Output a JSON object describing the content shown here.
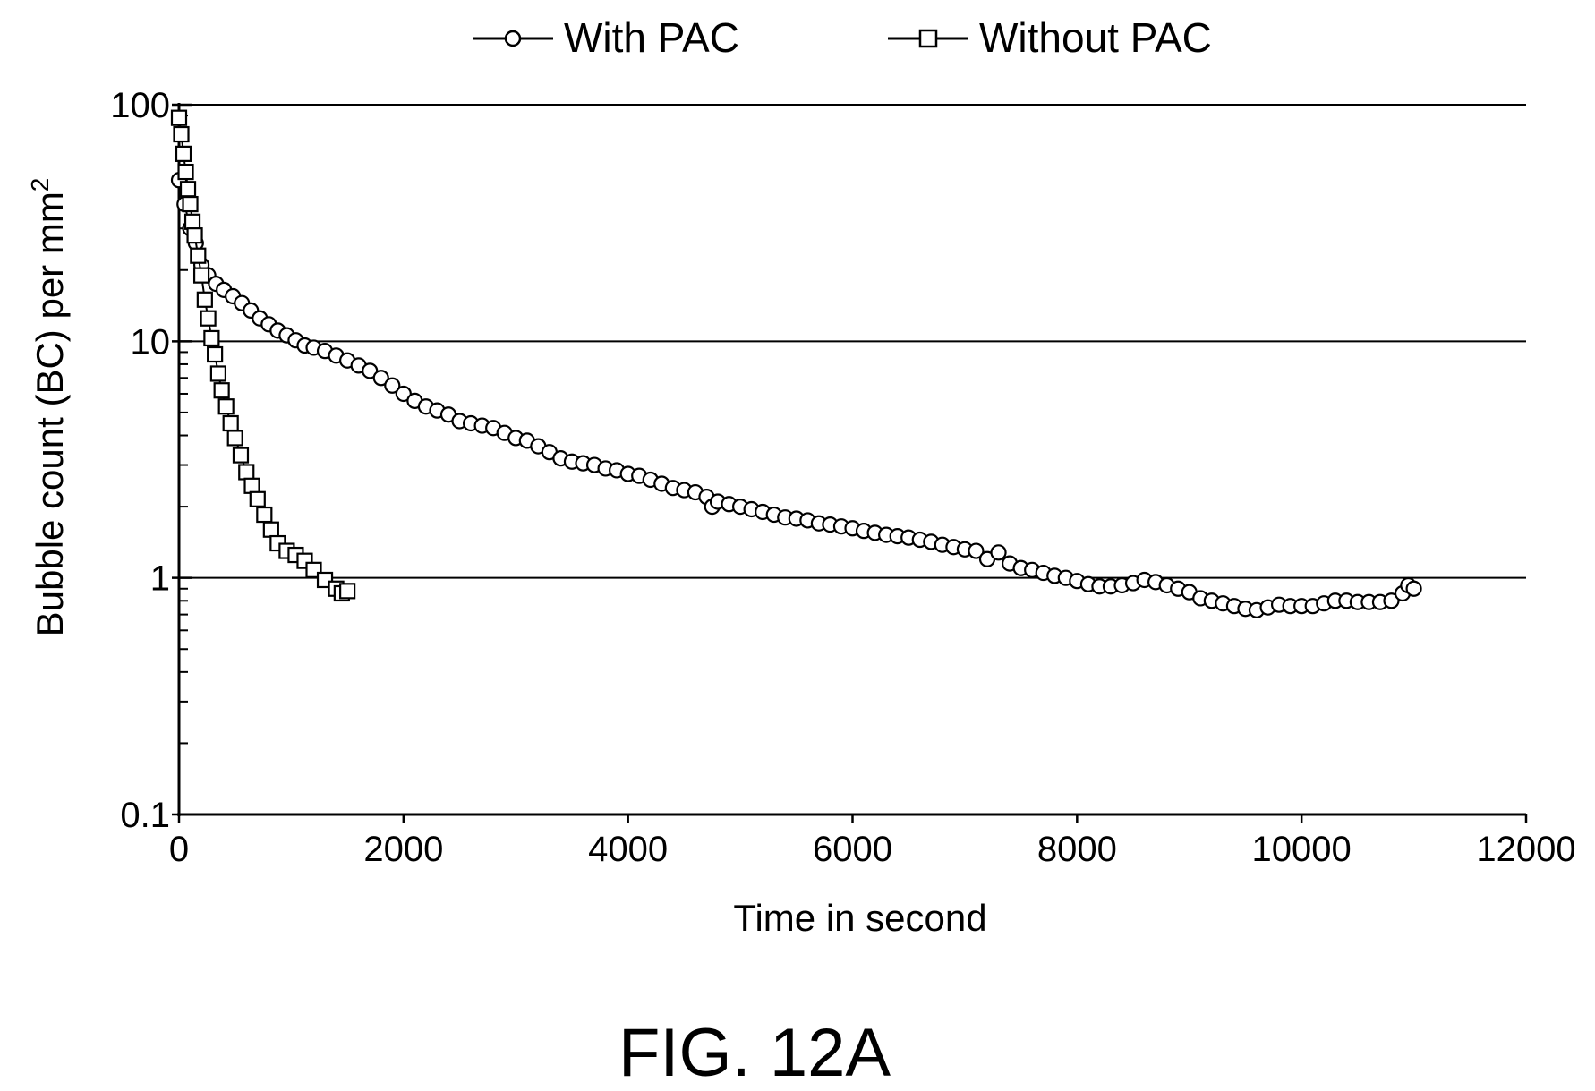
{
  "figure": {
    "caption": "FIG. 12A"
  },
  "chart_data": {
    "type": "scatter",
    "xlabel": "Time in second",
    "ylabel": "Bubble count (BC) per mm",
    "ylabel_superscript": "2",
    "xlim": [
      0,
      12000
    ],
    "ylim": [
      0.1,
      100
    ],
    "y_scale": "log",
    "x_ticks": [
      "0",
      "2000",
      "4000",
      "6000",
      "8000",
      "10000",
      "12000"
    ],
    "y_ticks": [
      "0.1",
      "1",
      "10",
      "100"
    ],
    "y_tick_values": [
      0.1,
      1,
      10,
      100
    ],
    "x_tick_values": [
      0,
      2000,
      4000,
      6000,
      8000,
      10000,
      12000
    ],
    "grid": "horizontal at 1, 10, 100",
    "legend_position": "top",
    "series": [
      {
        "name": "With PAC",
        "marker": "circle",
        "points": [
          [
            0,
            48
          ],
          [
            50,
            38
          ],
          [
            100,
            30
          ],
          [
            150,
            26
          ],
          [
            200,
            21
          ],
          [
            260,
            19
          ],
          [
            330,
            17.5
          ],
          [
            400,
            16.5
          ],
          [
            480,
            15.5
          ],
          [
            560,
            14.5
          ],
          [
            640,
            13.5
          ],
          [
            720,
            12.5
          ],
          [
            800,
            11.8
          ],
          [
            880,
            11.1
          ],
          [
            960,
            10.6
          ],
          [
            1040,
            10.1
          ],
          [
            1120,
            9.6
          ],
          [
            1200,
            9.4
          ],
          [
            1300,
            9.1
          ],
          [
            1400,
            8.7
          ],
          [
            1500,
            8.3
          ],
          [
            1600,
            7.9
          ],
          [
            1700,
            7.5
          ],
          [
            1800,
            7.0
          ],
          [
            1900,
            6.5
          ],
          [
            2000,
            6.0
          ],
          [
            2100,
            5.6
          ],
          [
            2200,
            5.3
          ],
          [
            2300,
            5.1
          ],
          [
            2400,
            4.9
          ],
          [
            2500,
            4.6
          ],
          [
            2600,
            4.5
          ],
          [
            2700,
            4.4
          ],
          [
            2800,
            4.3
          ],
          [
            2900,
            4.1
          ],
          [
            3000,
            3.9
          ],
          [
            3100,
            3.8
          ],
          [
            3200,
            3.6
          ],
          [
            3300,
            3.4
          ],
          [
            3400,
            3.2
          ],
          [
            3500,
            3.1
          ],
          [
            3600,
            3.05
          ],
          [
            3700,
            3.0
          ],
          [
            3800,
            2.9
          ],
          [
            3900,
            2.85
          ],
          [
            4000,
            2.75
          ],
          [
            4100,
            2.7
          ],
          [
            4200,
            2.6
          ],
          [
            4300,
            2.5
          ],
          [
            4400,
            2.4
          ],
          [
            4500,
            2.35
          ],
          [
            4600,
            2.3
          ],
          [
            4700,
            2.2
          ],
          [
            4750,
            2.0
          ],
          [
            4800,
            2.1
          ],
          [
            4900,
            2.05
          ],
          [
            5000,
            2.0
          ],
          [
            5100,
            1.95
          ],
          [
            5200,
            1.9
          ],
          [
            5300,
            1.85
          ],
          [
            5400,
            1.8
          ],
          [
            5500,
            1.78
          ],
          [
            5600,
            1.75
          ],
          [
            5700,
            1.7
          ],
          [
            5800,
            1.68
          ],
          [
            5900,
            1.65
          ],
          [
            6000,
            1.62
          ],
          [
            6100,
            1.58
          ],
          [
            6200,
            1.55
          ],
          [
            6300,
            1.52
          ],
          [
            6400,
            1.5
          ],
          [
            6500,
            1.48
          ],
          [
            6600,
            1.45
          ],
          [
            6700,
            1.42
          ],
          [
            6800,
            1.38
          ],
          [
            6900,
            1.35
          ],
          [
            7000,
            1.32
          ],
          [
            7100,
            1.3
          ],
          [
            7200,
            1.2
          ],
          [
            7300,
            1.28
          ],
          [
            7400,
            1.15
          ],
          [
            7500,
            1.1
          ],
          [
            7600,
            1.08
          ],
          [
            7700,
            1.05
          ],
          [
            7800,
            1.02
          ],
          [
            7900,
            1.0
          ],
          [
            8000,
            0.97
          ],
          [
            8100,
            0.94
          ],
          [
            8200,
            0.92
          ],
          [
            8300,
            0.92
          ],
          [
            8400,
            0.93
          ],
          [
            8500,
            0.95
          ],
          [
            8600,
            0.98
          ],
          [
            8700,
            0.96
          ],
          [
            8800,
            0.93
          ],
          [
            8900,
            0.9
          ],
          [
            9000,
            0.87
          ],
          [
            9100,
            0.82
          ],
          [
            9200,
            0.8
          ],
          [
            9300,
            0.78
          ],
          [
            9400,
            0.76
          ],
          [
            9500,
            0.74
          ],
          [
            9600,
            0.73
          ],
          [
            9700,
            0.75
          ],
          [
            9800,
            0.77
          ],
          [
            9900,
            0.76
          ],
          [
            10000,
            0.76
          ],
          [
            10100,
            0.76
          ],
          [
            10200,
            0.78
          ],
          [
            10300,
            0.8
          ],
          [
            10400,
            0.8
          ],
          [
            10500,
            0.79
          ],
          [
            10600,
            0.79
          ],
          [
            10700,
            0.79
          ],
          [
            10800,
            0.8
          ],
          [
            10900,
            0.86
          ],
          [
            10950,
            0.93
          ],
          [
            11000,
            0.9
          ]
        ]
      },
      {
        "name": "Without PAC",
        "marker": "square",
        "points": [
          [
            0,
            88
          ],
          [
            20,
            75
          ],
          [
            40,
            62
          ],
          [
            60,
            52
          ],
          [
            80,
            44
          ],
          [
            100,
            38
          ],
          [
            120,
            32
          ],
          [
            140,
            28
          ],
          [
            170,
            23
          ],
          [
            200,
            19
          ],
          [
            230,
            15
          ],
          [
            260,
            12.5
          ],
          [
            290,
            10.3
          ],
          [
            320,
            8.8
          ],
          [
            350,
            7.3
          ],
          [
            380,
            6.2
          ],
          [
            420,
            5.3
          ],
          [
            460,
            4.5
          ],
          [
            500,
            3.9
          ],
          [
            550,
            3.3
          ],
          [
            600,
            2.8
          ],
          [
            650,
            2.45
          ],
          [
            700,
            2.15
          ],
          [
            760,
            1.85
          ],
          [
            820,
            1.6
          ],
          [
            880,
            1.4
          ],
          [
            960,
            1.3
          ],
          [
            1040,
            1.25
          ],
          [
            1120,
            1.18
          ],
          [
            1200,
            1.08
          ],
          [
            1300,
            0.98
          ],
          [
            1400,
            0.9
          ],
          [
            1450,
            0.86
          ],
          [
            1500,
            0.88
          ]
        ]
      }
    ]
  }
}
